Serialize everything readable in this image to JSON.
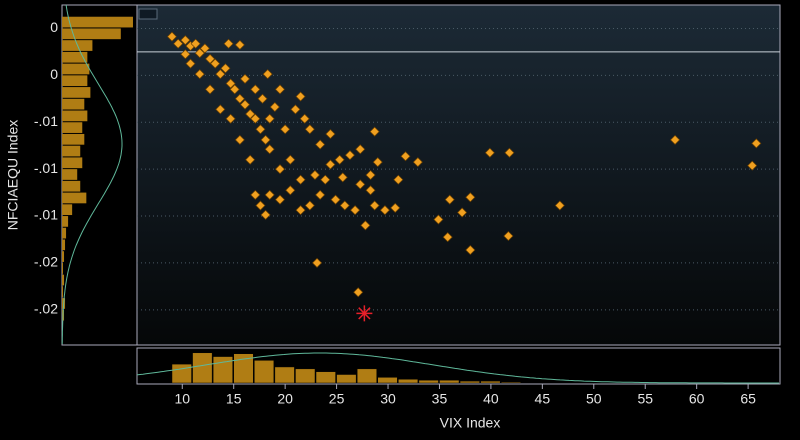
{
  "chart_data": {
    "type": "scatter",
    "x_label": "VIX Index",
    "y_label": "NFCIAEQU Index",
    "color": "#f0a020",
    "x": [
      9.0,
      9.6,
      10.3,
      10.8,
      11.3,
      11.7,
      12.2,
      12.7,
      13.2,
      13.7,
      14.2,
      14.7,
      15.1,
      15.6,
      16.1,
      16.6,
      17.1,
      17.6,
      18.1,
      18.5,
      14.5,
      15.6,
      18.3,
      19.5,
      21.5,
      21.0,
      21.9,
      22.4,
      23.4,
      24.4,
      25.3,
      26.3,
      27.3,
      28.7,
      29.0,
      31.7,
      32.9,
      39.9,
      41.8,
      57.9,
      65.8,
      65.4,
      46.7,
      41.7,
      38.0,
      35.8,
      37.2,
      38.0,
      36.0,
      34.9,
      31.0,
      30.7,
      29.7,
      28.7,
      27.8,
      26.8,
      25.8,
      24.9,
      23.4,
      22.4,
      21.5,
      20.5,
      19.5,
      18.5,
      17.6,
      17.1,
      18.1,
      23.1,
      27.1,
      15.6,
      14.7,
      16.6,
      19.5,
      20.5,
      21.5,
      22.9,
      23.9,
      27.3,
      28.3,
      13.7,
      12.7,
      11.7,
      10.8,
      10.3,
      18.5,
      20.0,
      16.1,
      17.1,
      17.8,
      19.0,
      28.3,
      24.4,
      25.6
    ],
    "y": [
      0.0013,
      0.0007,
      0.001,
      0.0005,
      0.0007,
      -0.0001,
      0.0003,
      -0.0006,
      -0.001,
      -0.0019,
      -0.0014,
      -0.0027,
      -0.0032,
      -0.004,
      -0.0045,
      -0.0053,
      -0.0057,
      -0.0066,
      -0.0075,
      -0.0083,
      0.0007,
      0.0006,
      -0.0019,
      -0.0032,
      -0.0038,
      -0.0049,
      -0.0057,
      -0.0066,
      -0.0079,
      -0.007,
      -0.0092,
      -0.0088,
      -0.0083,
      -0.0068,
      -0.0094,
      -0.0089,
      -0.0094,
      -0.0086,
      -0.0086,
      -0.0075,
      -0.0078,
      -0.0097,
      -0.0131,
      -0.0157,
      -0.0169,
      -0.0158,
      -0.0137,
      -0.0124,
      -0.0126,
      -0.0143,
      -0.0109,
      -0.0133,
      -0.0135,
      -0.0131,
      -0.0148,
      -0.0135,
      -0.0131,
      -0.0126,
      -0.0122,
      -0.0131,
      -0.0135,
      -0.0118,
      -0.0126,
      -0.0122,
      -0.0131,
      -0.0122,
      -0.0139,
      -0.018,
      -0.0205,
      -0.0075,
      -0.0057,
      -0.0092,
      -0.01,
      -0.0092,
      -0.0109,
      -0.0105,
      -0.0109,
      -0.0113,
      -0.0118,
      -0.0049,
      -0.0032,
      -0.0019,
      -0.001,
      -0.0002,
      -0.0057,
      -0.0066,
      -0.0023,
      -0.0032,
      -0.004,
      -0.0047,
      -0.0105,
      -0.0096,
      -0.0107
    ],
    "highlight": {
      "x": 27.7,
      "y": -0.0223,
      "color": "#e8202a"
    },
    "reference_line": {
      "y": 0
    },
    "xlim": [
      5.6,
      68.1
    ],
    "ylim": [
      -0.025,
      0.004
    ],
    "xticks": [
      10,
      15,
      20,
      25,
      30,
      35,
      40,
      45,
      50,
      55,
      60,
      65
    ],
    "yticks": [
      {
        "value": 0.002,
        "label": "0"
      },
      {
        "value": -0.002,
        "label": "0"
      },
      {
        "value": -0.006,
        "label": "-.01"
      },
      {
        "value": -0.01,
        "label": "-.01"
      },
      {
        "value": -0.014,
        "label": "-.01"
      },
      {
        "value": -0.018,
        "label": "-.02"
      },
      {
        "value": -0.022,
        "label": "-.02"
      }
    ],
    "grid": true,
    "x_histogram": {
      "color": "#b07d14",
      "count_lim": [
        0,
        36
      ],
      "bins": [
        9,
        11,
        13,
        15,
        17,
        19,
        21,
        23,
        25,
        27,
        29,
        31,
        33,
        35,
        37,
        39,
        41,
        43
      ],
      "counts": [
        20,
        32,
        28,
        31,
        24,
        17,
        15,
        12,
        9,
        15,
        6,
        4,
        3,
        3,
        2,
        2,
        1
      ]
    },
    "y_histogram": {
      "color": "#b07d14",
      "count_lim": [
        0,
        72
      ],
      "bins": [
        -0.023,
        -0.022,
        -0.021,
        -0.02,
        -0.019,
        -0.018,
        -0.017,
        -0.016,
        -0.015,
        -0.014,
        -0.013,
        -0.012,
        -0.011,
        -0.01,
        -0.009,
        -0.008,
        -0.007,
        -0.006,
        -0.005,
        -0.004,
        -0.003,
        -0.002,
        -0.001,
        0,
        0.001,
        0.002,
        0.003
      ],
      "counts": [
        2,
        3,
        1,
        2,
        1,
        2,
        3,
        4,
        6,
        10,
        24,
        18,
        15,
        20,
        18,
        22,
        20,
        25,
        22,
        28,
        25,
        27,
        25,
        30,
        58,
        70
      ]
    }
  }
}
